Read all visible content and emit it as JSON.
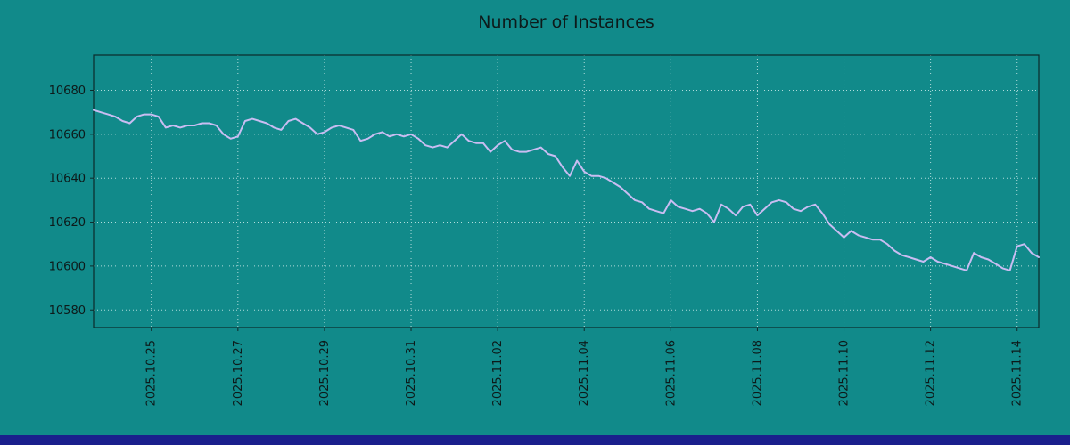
{
  "chart_data": {
    "type": "line",
    "title": "Number of Instances",
    "series_name": "instances",
    "x_start": "2025-10-23 16:00",
    "step_hours": 4,
    "values": [
      10671,
      10670,
      10669,
      10668,
      10666,
      10665,
      10668,
      10669,
      10669,
      10668,
      10663,
      10664,
      10663,
      10664,
      10664,
      10665,
      10665,
      10664,
      10660,
      10658,
      10659,
      10666,
      10667,
      10666,
      10665,
      10663,
      10662,
      10666,
      10667,
      10665,
      10663,
      10660,
      10661,
      10663,
      10664,
      10663,
      10662,
      10657,
      10658,
      10660,
      10661,
      10659,
      10660,
      10659,
      10660,
      10658,
      10655,
      10654,
      10655,
      10654,
      10657,
      10660,
      10657,
      10656,
      10656,
      10652,
      10655,
      10657,
      10653,
      10652,
      10652,
      10653,
      10654,
      10651,
      10650,
      10645,
      10641,
      10648,
      10643,
      10641,
      10641,
      10640,
      10638,
      10636,
      10633,
      10630,
      10629,
      10626,
      10625,
      10624,
      10630,
      10627,
      10626,
      10625,
      10626,
      10624,
      10620,
      10628,
      10626,
      10623,
      10627,
      10628,
      10623,
      10626,
      10629,
      10630,
      10629,
      10626,
      10625,
      10627,
      10628,
      10624,
      10619,
      10616,
      10613,
      10616,
      10614,
      10613,
      10612,
      10612,
      10610,
      10607,
      10605,
      10604,
      10603,
      10602,
      10604,
      10602,
      10601,
      10600,
      10599,
      10598,
      10606,
      10604,
      10603,
      10601,
      10599,
      10598,
      10609,
      10610,
      10606,
      10604
    ],
    "ylim": [
      10572,
      10696
    ],
    "yticks": [
      10580,
      10600,
      10620,
      10640,
      10660,
      10680
    ],
    "xticks": [
      {
        "label": "2025.10.25",
        "day": 1.3333
      },
      {
        "label": "2025.10.27",
        "day": 3.3333
      },
      {
        "label": "2025.10.29",
        "day": 5.3333
      },
      {
        "label": "2025.10.31",
        "day": 7.3333
      },
      {
        "label": "2025.11.02",
        "day": 9.3333
      },
      {
        "label": "2025.11.04",
        "day": 11.3333
      },
      {
        "label": "2025.11.06",
        "day": 13.3333
      },
      {
        "label": "2025.11.08",
        "day": 15.3333
      },
      {
        "label": "2025.11.10",
        "day": 17.3333
      },
      {
        "label": "2025.11.12",
        "day": 19.3333
      },
      {
        "label": "2025.11.14",
        "day": 21.3333
      }
    ],
    "grid": "dotted",
    "legend": "none",
    "colors": {
      "background": "#118a8a",
      "line": "#c9bdf2",
      "grid": "#daf0f0",
      "text": "#0d1a1a",
      "axis": "#0b2b2b",
      "bottom_bar": "#1a1f8c"
    }
  }
}
